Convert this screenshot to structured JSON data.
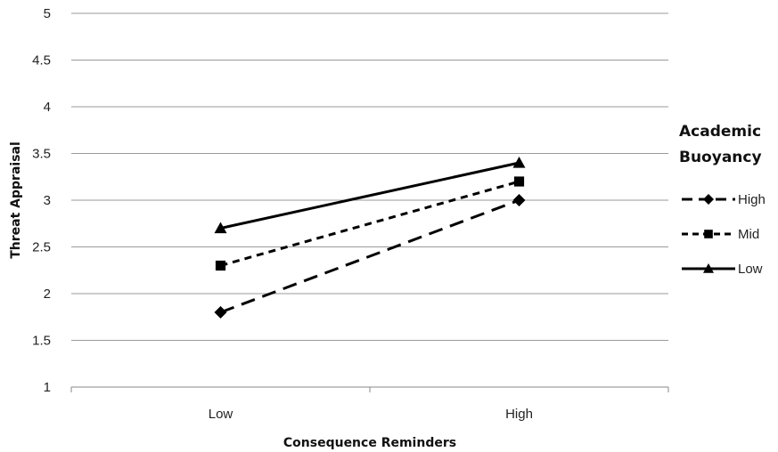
{
  "chart_data": {
    "type": "line",
    "title": "",
    "xlabel": "Consequence Reminders",
    "ylabel": "Threat Appraisal",
    "categories": [
      "Low",
      "High"
    ],
    "ylim": [
      1,
      5
    ],
    "yticks": [
      1,
      1.5,
      2,
      2.5,
      3,
      3.5,
      4,
      4.5,
      5
    ],
    "ytick_labels": [
      "1",
      "1.5",
      "2",
      "2.5",
      "3",
      "3.5",
      "4",
      "4.5",
      "5"
    ],
    "grid": true,
    "legend": {
      "title_lines": [
        "Academic",
        "Buoyancy"
      ],
      "placement": "right"
    },
    "series": [
      {
        "name": "High",
        "values": [
          1.8,
          3.0
        ],
        "marker": "diamond",
        "dash": "long-dash"
      },
      {
        "name": "Mid",
        "values": [
          2.3,
          3.2
        ],
        "marker": "square",
        "dash": "short-dash"
      },
      {
        "name": "Low",
        "values": [
          2.7,
          3.4
        ],
        "marker": "triangle",
        "dash": "solid"
      }
    ]
  }
}
